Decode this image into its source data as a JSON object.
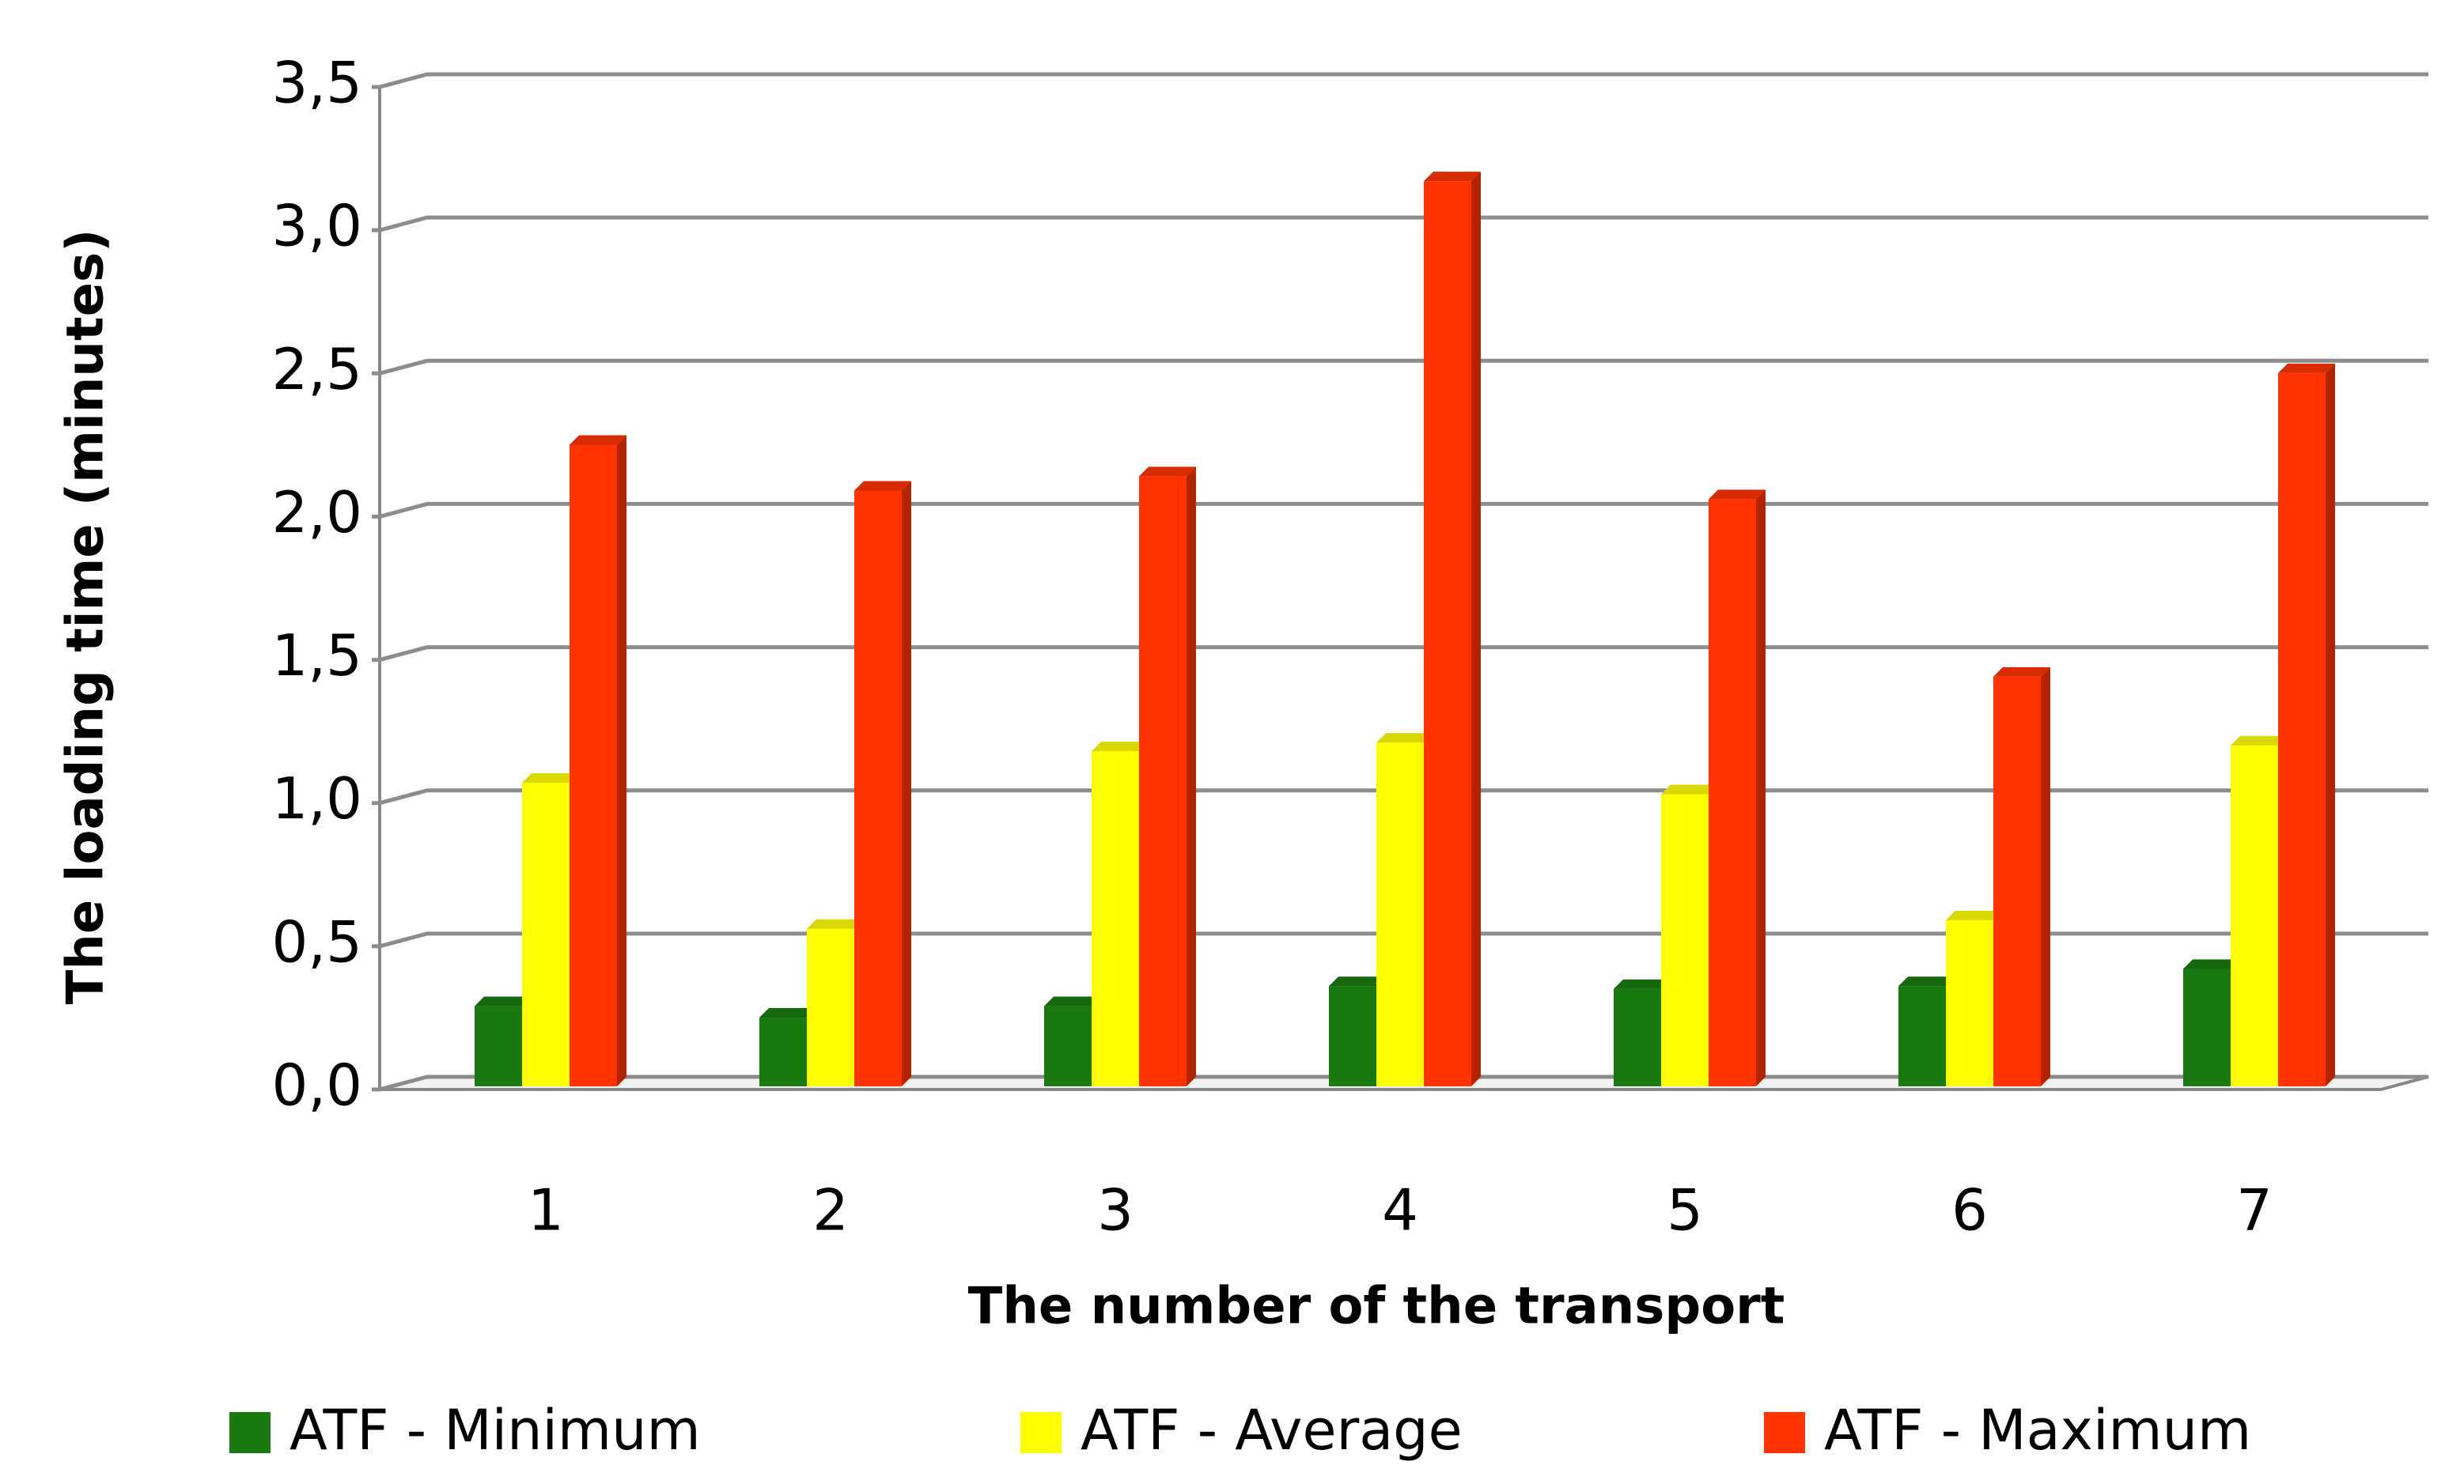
{
  "chart_data": {
    "type": "bar",
    "x_label": "The number of the transport",
    "y_label": "The loading time (minutes)",
    "categories": [
      "1",
      "2",
      "3",
      "4",
      "5",
      "6",
      "7"
    ],
    "series": [
      {
        "name": "ATF - Minimum",
        "color": "#1a7a12",
        "values": [
          0.28,
          0.24,
          0.28,
          0.35,
          0.34,
          0.35,
          0.41
        ]
      },
      {
        "name": "ATF - Average",
        "color": "#ffff00",
        "values": [
          1.06,
          0.55,
          1.17,
          1.2,
          1.02,
          0.58,
          1.19
        ]
      },
      {
        "name": "ATF - Maximum",
        "color": "#ff3300",
        "values": [
          2.24,
          2.08,
          2.13,
          3.16,
          2.05,
          1.43,
          2.49
        ]
      }
    ],
    "ylim": [
      0,
      3.5
    ],
    "yticks": [
      {
        "value": 0,
        "label": "0,0"
      },
      {
        "value": 0.5,
        "label": "0,5"
      },
      {
        "value": 1,
        "label": "1,0"
      },
      {
        "value": 1.5,
        "label": "1,5"
      },
      {
        "value": 2,
        "label": "2,0"
      },
      {
        "value": 2.5,
        "label": "2,5"
      },
      {
        "value": 3,
        "label": "3,0"
      },
      {
        "value": 3.5,
        "label": "3,5"
      }
    ],
    "grid": true,
    "legend": "bottom"
  }
}
